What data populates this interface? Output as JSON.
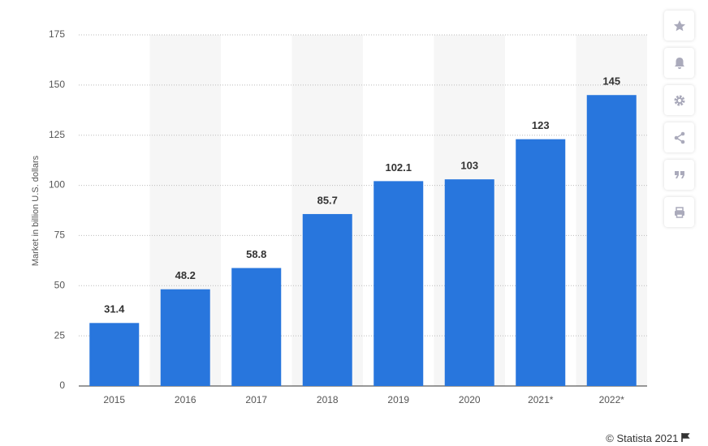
{
  "chart_data": {
    "type": "bar",
    "y_label": "Market in billion U.S. dollars",
    "categories": [
      "2015",
      "2016",
      "2017",
      "2018",
      "2019",
      "2020",
      "2021*",
      "2022*"
    ],
    "values": [
      31.4,
      48.2,
      58.8,
      85.7,
      102.1,
      103,
      123,
      145
    ],
    "color": "#2876dd",
    "ylim": [
      0,
      175
    ],
    "yticks": [
      0,
      25,
      50,
      75,
      100,
      125,
      150,
      175
    ],
    "grid": true
  },
  "credit": "© Statista 2021"
}
